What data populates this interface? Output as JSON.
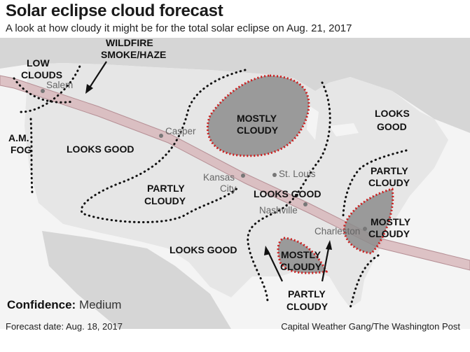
{
  "header": {
    "title": "Solar eclipse cloud forecast",
    "subtitle": "A look at how cloudy it might be for the total solar eclipse on Aug. 21, 2017"
  },
  "map": {
    "regions": [
      {
        "id": "low-clouds-1",
        "text": "LOW"
      },
      {
        "id": "low-clouds-2",
        "text": "CLOUDS"
      },
      {
        "id": "wildfire-1",
        "text": "WILDFIRE"
      },
      {
        "id": "wildfire-2",
        "text": "SMOKE/HAZE"
      },
      {
        "id": "am-fog-1",
        "text": "A.M."
      },
      {
        "id": "am-fog-2",
        "text": "FOG"
      },
      {
        "id": "looks-good-west",
        "text": "LOOKS GOOD"
      },
      {
        "id": "mostly-cloudy-north-1",
        "text": "MOSTLY"
      },
      {
        "id": "mostly-cloudy-north-2",
        "text": "CLOUDY"
      },
      {
        "id": "looks-good-northeast-1",
        "text": "LOOKS"
      },
      {
        "id": "looks-good-northeast-2",
        "text": "GOOD"
      },
      {
        "id": "partly-cloudy-central-1",
        "text": "PARTLY"
      },
      {
        "id": "partly-cloudy-central-2",
        "text": "CLOUDY"
      },
      {
        "id": "looks-good-central",
        "text": "LOOKS GOOD"
      },
      {
        "id": "partly-cloudy-east-1",
        "text": "PARTLY"
      },
      {
        "id": "partly-cloudy-east-2",
        "text": "CLOUDY"
      },
      {
        "id": "mostly-cloudy-southeast-1",
        "text": "MOSTLY"
      },
      {
        "id": "mostly-cloudy-southeast-2",
        "text": "CLOUDY"
      },
      {
        "id": "looks-good-south",
        "text": "LOOKS GOOD"
      },
      {
        "id": "mostly-cloudy-south-1",
        "text": "MOSTLY"
      },
      {
        "id": "mostly-cloudy-south-2",
        "text": "CLOUDY"
      },
      {
        "id": "partly-cloudy-south-1",
        "text": "PARTLY"
      },
      {
        "id": "partly-cloudy-south-2",
        "text": "CLOUDY"
      }
    ],
    "cities": [
      {
        "name": "Salem"
      },
      {
        "name": "Casper"
      },
      {
        "name": "Kansas"
      },
      {
        "name": "City"
      },
      {
        "name": "St. Louis"
      },
      {
        "name": "Nashville"
      },
      {
        "name": "Charleston"
      }
    ],
    "colors": {
      "land": "#e6e6e6",
      "neighbor_land": "#d6d6d6",
      "water": "#f4f4f4",
      "eclipse_path": "#d6b2b6",
      "eclipse_path_edge": "#b69096",
      "mostly_cloudy_fill": "#8c8c8c",
      "mostly_cloudy_border": "#cc1f1f",
      "boundary": "#111111"
    }
  },
  "legend": {
    "confidence_label": "Confidence:",
    "confidence_value": "Medium"
  },
  "footer": {
    "forecast_date": "Forecast date: Aug. 18, 2017",
    "credit": "Capital Weather Gang/The Washington Post"
  }
}
